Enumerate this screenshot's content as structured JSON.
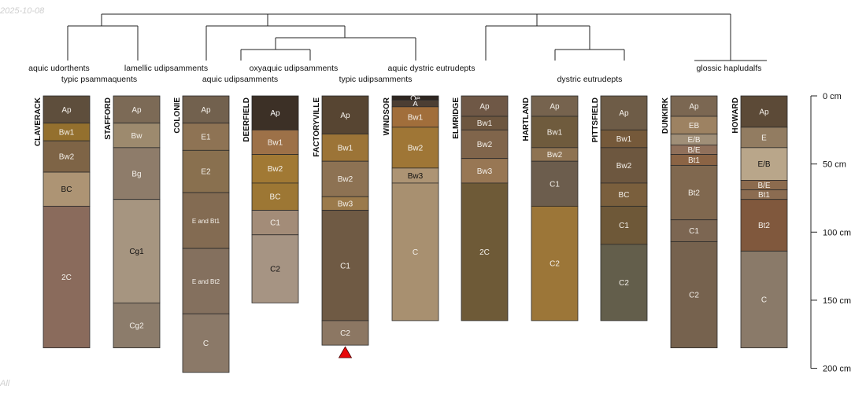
{
  "date_stamp": "2025-10-08",
  "footnote": "All",
  "depth_axis": {
    "unit": "cm",
    "ticks": [
      {
        "depth": 0,
        "label": "0 cm"
      },
      {
        "depth": 50,
        "label": "50 cm"
      },
      {
        "depth": 100,
        "label": "100 cm"
      },
      {
        "depth": 150,
        "label": "150 cm"
      },
      {
        "depth": 200,
        "label": "200 cm"
      }
    ]
  },
  "taxa": [
    {
      "label": "aquic udorthents",
      "members": [
        "CLAVERACK"
      ]
    },
    {
      "label": "typic psammaquents",
      "members": [
        "STAFFORD"
      ]
    },
    {
      "label": "lamellic udipsamments",
      "members": [
        "COLONIE"
      ]
    },
    {
      "label": "aquic udipsamments",
      "members": [
        "DEERFIELD"
      ]
    },
    {
      "label": "oxyaquic udipsamments",
      "members": [
        "FACTORYVILLE"
      ]
    },
    {
      "label": "typic udipsamments",
      "members": [
        "WINDSOR"
      ]
    },
    {
      "label": "aquic dystric eutrudepts",
      "members": [
        "ELMRIDGE"
      ]
    },
    {
      "label": "dystric eutrudepts",
      "members": [
        "HARTLAND",
        "PITTSFIELD"
      ]
    },
    {
      "label": "glossic hapludalfs",
      "members": [
        "DUNKIRK",
        "HOWARD"
      ]
    }
  ],
  "profiles": [
    {
      "name": "CLAVERACK",
      "horizons": [
        {
          "name": "Ap",
          "top": 0,
          "bottom": 20,
          "color": "#5e4e3c"
        },
        {
          "name": "Bw1",
          "top": 20,
          "bottom": 33,
          "color": "#94702e"
        },
        {
          "name": "Bw2",
          "top": 33,
          "bottom": 56,
          "color": "#7e6446"
        },
        {
          "name": "BC",
          "top": 56,
          "bottom": 81,
          "color": "#ad9474"
        },
        {
          "name": "2C",
          "top": 81,
          "bottom": 185,
          "color": "#8a6b5c"
        }
      ]
    },
    {
      "name": "STAFFORD",
      "horizons": [
        {
          "name": "Ap",
          "top": 0,
          "bottom": 20,
          "color": "#7c6a56"
        },
        {
          "name": "Bw",
          "top": 20,
          "bottom": 38,
          "color": "#9d8a6e"
        },
        {
          "name": "Bg",
          "top": 38,
          "bottom": 76,
          "color": "#8e7c6a"
        },
        {
          "name": "Cg1",
          "top": 76,
          "bottom": 152,
          "color": "#a69580"
        },
        {
          "name": "Cg2",
          "top": 152,
          "bottom": 185,
          "color": "#8c7c6b"
        }
      ]
    },
    {
      "name": "COLONIE",
      "horizons": [
        {
          "name": "Ap",
          "top": 0,
          "bottom": 20,
          "color": "#72614e"
        },
        {
          "name": "E1",
          "top": 20,
          "bottom": 40,
          "color": "#8e7354"
        },
        {
          "name": "E2",
          "top": 40,
          "bottom": 71,
          "color": "#89704f"
        },
        {
          "name": "E and Bt1",
          "top": 71,
          "bottom": 112,
          "color": "#836b52"
        },
        {
          "name": "E and Bt2",
          "top": 112,
          "bottom": 160,
          "color": "#84705e"
        },
        {
          "name": "C",
          "top": 160,
          "bottom": 203,
          "color": "#8b7968"
        }
      ]
    },
    {
      "name": "DEERFIELD",
      "horizons": [
        {
          "name": "Ap",
          "top": 0,
          "bottom": 25,
          "color": "#3c3026"
        },
        {
          "name": "Bw1",
          "top": 25,
          "bottom": 43,
          "color": "#9d7148"
        },
        {
          "name": "Bw2",
          "top": 43,
          "bottom": 64,
          "color": "#a17934"
        },
        {
          "name": "BC",
          "top": 64,
          "bottom": 84,
          "color": "#9d7734"
        },
        {
          "name": "C1",
          "top": 84,
          "bottom": 102,
          "color": "#a38c78"
        },
        {
          "name": "C2",
          "top": 102,
          "bottom": 152,
          "color": "#a69483"
        }
      ]
    },
    {
      "name": "FACTORYVILLE",
      "horizons": [
        {
          "name": "Ap",
          "top": 0,
          "bottom": 28,
          "color": "#574532"
        },
        {
          "name": "Bw1",
          "top": 28,
          "bottom": 48,
          "color": "#9c7437"
        },
        {
          "name": "Bw2",
          "top": 48,
          "bottom": 74,
          "color": "#8d7253"
        },
        {
          "name": "Bw3",
          "top": 74,
          "bottom": 84,
          "color": "#9b7a4b"
        },
        {
          "name": "C1",
          "top": 84,
          "bottom": 165,
          "color": "#6f5a44"
        },
        {
          "name": "C2",
          "top": 165,
          "bottom": 183,
          "color": "#8c7763"
        }
      ]
    },
    {
      "name": "WINDSOR",
      "horizons": [
        {
          "name": "Oe",
          "top": 0,
          "bottom": 3,
          "color": "#2f2620"
        },
        {
          "name": "A",
          "top": 3,
          "bottom": 8,
          "color": "#4c3e33"
        },
        {
          "name": "Bw1",
          "top": 8,
          "bottom": 23,
          "color": "#a16e3b"
        },
        {
          "name": "Bw2",
          "top": 23,
          "bottom": 53,
          "color": "#9f7636"
        },
        {
          "name": "Bw3",
          "top": 53,
          "bottom": 64,
          "color": "#ad9474"
        },
        {
          "name": "C",
          "top": 64,
          "bottom": 165,
          "color": "#a89070"
        }
      ]
    },
    {
      "name": "ELMRIDGE",
      "horizons": [
        {
          "name": "Ap",
          "top": 0,
          "bottom": 15,
          "color": "#6f5846"
        },
        {
          "name": "Bw1",
          "top": 15,
          "bottom": 25,
          "color": "#6d563f"
        },
        {
          "name": "Bw2",
          "top": 25,
          "bottom": 46,
          "color": "#80654b"
        },
        {
          "name": "Bw3",
          "top": 46,
          "bottom": 64,
          "color": "#987754"
        },
        {
          "name": "2C",
          "top": 64,
          "bottom": 165,
          "color": "#6e5a37"
        }
      ]
    },
    {
      "name": "HARTLAND",
      "horizons": [
        {
          "name": "Ap",
          "top": 0,
          "bottom": 15,
          "color": "#76634e"
        },
        {
          "name": "Bw1",
          "top": 15,
          "bottom": 38,
          "color": "#6f5b3d"
        },
        {
          "name": "Bw2",
          "top": 38,
          "bottom": 48,
          "color": "#8e7352"
        },
        {
          "name": "C1",
          "top": 48,
          "bottom": 81,
          "color": "#6c5d4d"
        },
        {
          "name": "C2",
          "top": 81,
          "bottom": 165,
          "color": "#9c7638"
        }
      ]
    },
    {
      "name": "PITTSFIELD",
      "horizons": [
        {
          "name": "Ap",
          "top": 0,
          "bottom": 25,
          "color": "#6e5c47"
        },
        {
          "name": "Bw1",
          "top": 25,
          "bottom": 38,
          "color": "#75593a"
        },
        {
          "name": "Bw2",
          "top": 38,
          "bottom": 64,
          "color": "#6d573f"
        },
        {
          "name": "BC",
          "top": 64,
          "bottom": 81,
          "color": "#7a5f3d"
        },
        {
          "name": "C1",
          "top": 81,
          "bottom": 109,
          "color": "#6e5838"
        },
        {
          "name": "C2",
          "top": 109,
          "bottom": 165,
          "color": "#635e4b"
        }
      ]
    },
    {
      "name": "DUNKIRK",
      "horizons": [
        {
          "name": "Ap",
          "top": 0,
          "bottom": 15,
          "color": "#7b6752"
        },
        {
          "name": "EB",
          "top": 15,
          "bottom": 28,
          "color": "#9d8262"
        },
        {
          "name": "E/B",
          "top": 28,
          "bottom": 36,
          "color": "#a08f78"
        },
        {
          "name": "B/E",
          "top": 36,
          "bottom": 43,
          "color": "#90705b"
        },
        {
          "name": "Bt1",
          "top": 43,
          "bottom": 51,
          "color": "#8b6445"
        },
        {
          "name": "Bt2",
          "top": 51,
          "bottom": 91,
          "color": "#80684f"
        },
        {
          "name": "C1",
          "top": 91,
          "bottom": 107,
          "color": "#7c6652"
        },
        {
          "name": "C2",
          "top": 107,
          "bottom": 185,
          "color": "#76624e"
        }
      ]
    },
    {
      "name": "HOWARD",
      "horizons": [
        {
          "name": "Ap",
          "top": 0,
          "bottom": 23,
          "color": "#5c4a37"
        },
        {
          "name": "E",
          "top": 23,
          "bottom": 38,
          "color": "#927c61"
        },
        {
          "name": "E/B",
          "top": 38,
          "bottom": 62,
          "color": "#b9a68a"
        },
        {
          "name": "B/E",
          "top": 62,
          "bottom": 69,
          "color": "#8c6b4e"
        },
        {
          "name": "Bt1",
          "top": 69,
          "bottom": 76,
          "color": "#8b6c51"
        },
        {
          "name": "Bt2",
          "top": 76,
          "bottom": 114,
          "color": "#80583d"
        },
        {
          "name": "C",
          "top": 114,
          "bottom": 185,
          "color": "#8a7a69"
        }
      ]
    }
  ],
  "marker": {
    "profile": "FACTORYVILLE",
    "label": "marker",
    "color": "#e8080a"
  }
}
